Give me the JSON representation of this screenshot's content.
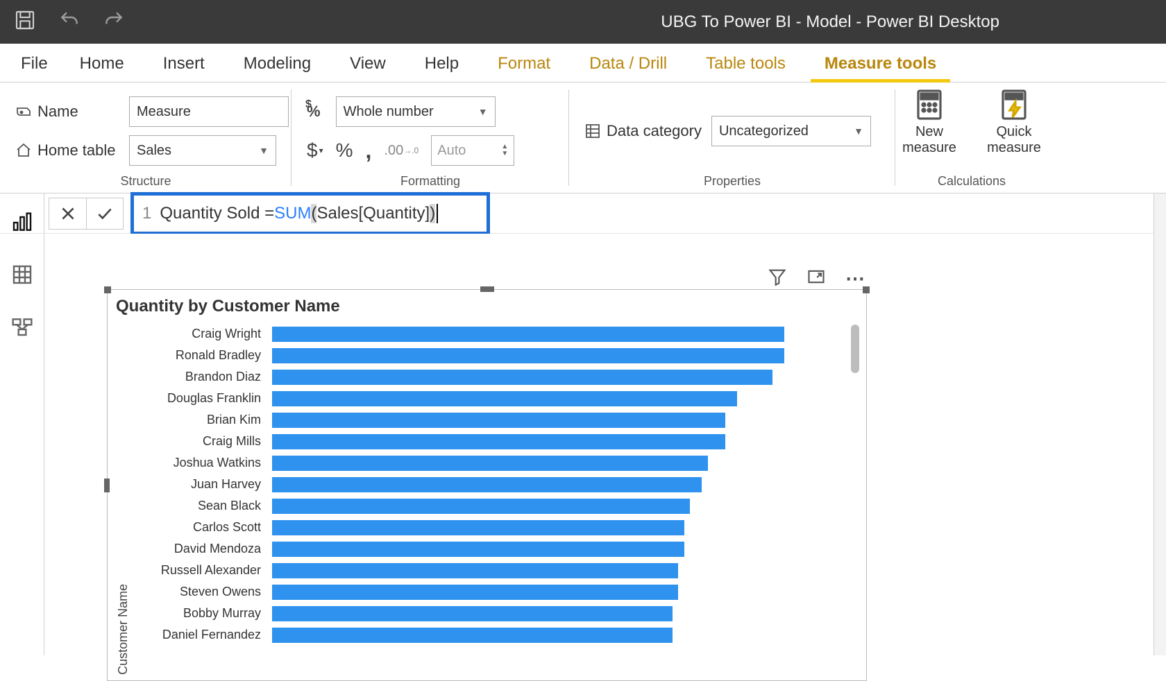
{
  "window": {
    "title": "UBG To Power BI - Model - Power BI Desktop"
  },
  "ribbon": {
    "tabs": {
      "file": "File",
      "home": "Home",
      "insert": "Insert",
      "modeling": "Modeling",
      "view": "View",
      "help": "Help",
      "format": "Format",
      "data_drill": "Data / Drill",
      "table_tools": "Table tools",
      "measure_tools": "Measure tools"
    },
    "active_tab": "measure_tools"
  },
  "structure_group": {
    "label": "Structure",
    "name_label": "Name",
    "name_value": "Measure",
    "home_table_label": "Home table",
    "home_table_value": "Sales"
  },
  "formatting_group": {
    "label": "Formatting",
    "format_value": "Whole number",
    "decimals_placeholder": "Auto"
  },
  "properties_group": {
    "label": "Properties",
    "data_category_label": "Data category",
    "data_category_value": "Uncategorized"
  },
  "calculations_group": {
    "label": "Calculations",
    "new_measure": "New measure",
    "quick_measure": "Quick measure"
  },
  "formula": {
    "line_number": "1",
    "prefix": "Quantity Sold = ",
    "function": "SUM",
    "open": "(",
    "inner": " Sales[Quantity] ",
    "close": ")"
  },
  "chart": {
    "type": "bar",
    "title": "Quantity by Customer Name",
    "y_axis_label": "Customer Name",
    "bar_color": "#2e92ee",
    "background_color": "#ffffff",
    "label_fontsize": 18,
    "title_fontsize": 24,
    "x_max": 100,
    "data": [
      {
        "label": "Craig Wright",
        "value": 87
      },
      {
        "label": "Ronald Bradley",
        "value": 87
      },
      {
        "label": "Brandon Diaz",
        "value": 85
      },
      {
        "label": "Douglas Franklin",
        "value": 79
      },
      {
        "label": "Brian Kim",
        "value": 77
      },
      {
        "label": "Craig Mills",
        "value": 77
      },
      {
        "label": "Joshua Watkins",
        "value": 74
      },
      {
        "label": "Juan Harvey",
        "value": 73
      },
      {
        "label": "Sean Black",
        "value": 71
      },
      {
        "label": "Carlos Scott",
        "value": 70
      },
      {
        "label": "David Mendoza",
        "value": 70
      },
      {
        "label": "Russell Alexander",
        "value": 69
      },
      {
        "label": "Steven Owens",
        "value": 69
      },
      {
        "label": "Bobby Murray",
        "value": 68
      },
      {
        "label": "Daniel Fernandez",
        "value": 68
      }
    ]
  }
}
